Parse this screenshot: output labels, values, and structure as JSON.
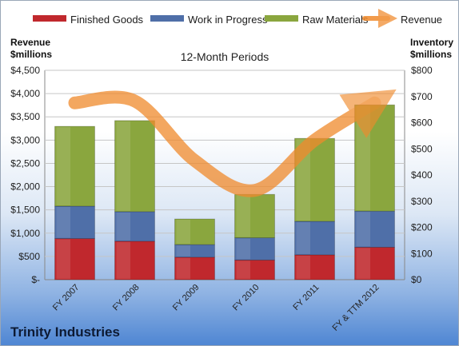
{
  "chart_data": {
    "type": "bar",
    "stacked": true,
    "title": "12-Month Periods",
    "company": "Trinity Industries",
    "categories": [
      "FY 2007",
      "FY 2008",
      "FY 2009",
      "FY 2010",
      "FY 2011",
      "FY & TTM 2012"
    ],
    "left_axis": {
      "title_line1": "Revenue",
      "title_line2": "$millions",
      "ylim": [
        0,
        4500
      ],
      "ticks": [
        0,
        500,
        1000,
        1500,
        2000,
        2500,
        3000,
        3500,
        4000,
        4500
      ],
      "tick_labels": [
        "$-",
        "$500",
        "$1,000",
        "$1,500",
        "$2,000",
        "$2,500",
        "$3,000",
        "$3,500",
        "$4,000",
        "$4,500"
      ]
    },
    "right_axis": {
      "title_line1": "Inventory",
      "title_line2": "$millions",
      "ylim": [
        0,
        800
      ],
      "ticks": [
        0,
        100,
        200,
        300,
        400,
        500,
        600,
        700,
        800
      ],
      "tick_labels": [
        "$0",
        "$100",
        "$200",
        "$300",
        "$400",
        "$500",
        "$600",
        "$700",
        "$800"
      ]
    },
    "series": [
      {
        "name": "Finished Goods",
        "axis": "right",
        "kind": "bar",
        "color": "#c0282d",
        "values": [
          157,
          147,
          86,
          75,
          95,
          124
        ]
      },
      {
        "name": "Work in Progress",
        "axis": "right",
        "kind": "bar",
        "color": "#4f6fa8",
        "values": [
          124,
          113,
          48,
          85,
          128,
          138
        ]
      },
      {
        "name": "Raw Materials",
        "axis": "right",
        "kind": "bar",
        "color": "#8aa63e",
        "values": [
          305,
          348,
          98,
          166,
          317,
          406
        ]
      },
      {
        "name": "Revenue",
        "axis": "left",
        "kind": "line",
        "color": "#f08a2c",
        "values": [
          3800,
          3840,
          2560,
          1920,
          3000,
          3800
        ]
      }
    ],
    "legend_position": "top",
    "grid": true
  }
}
